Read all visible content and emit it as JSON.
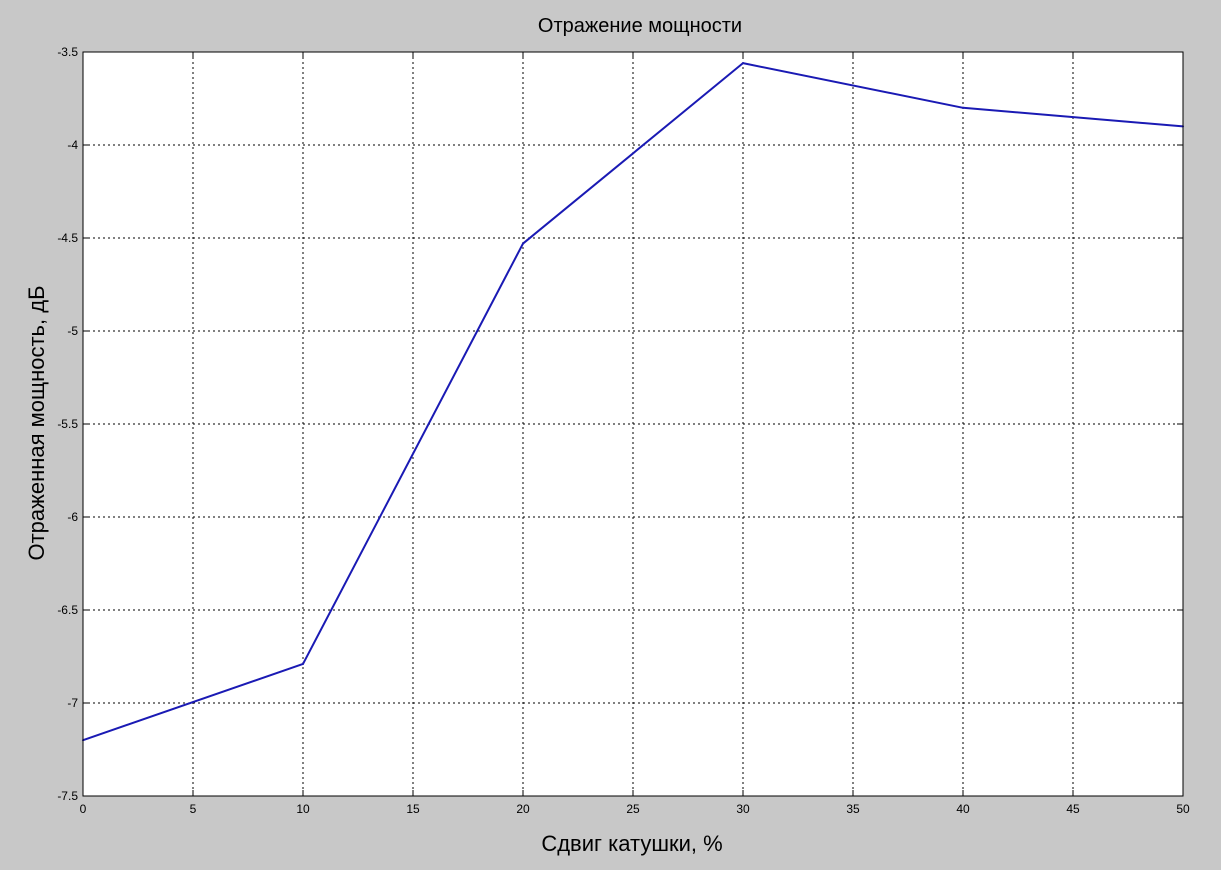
{
  "colors": {
    "figure_background": "#c8c8c8",
    "plot_background": "#ffffff",
    "line": "#1a1ab4",
    "grid": "#000000"
  },
  "chart_data": {
    "type": "line",
    "title": "Отражение мощности",
    "xlabel": "Сдвиг катушки, %",
    "ylabel": "Отраженная мощность, дБ",
    "xlim": [
      0,
      50
    ],
    "ylim": [
      -7.5,
      -3.5
    ],
    "x_ticks": [
      0,
      5,
      10,
      15,
      20,
      25,
      30,
      35,
      40,
      45,
      50
    ],
    "x_tick_labels": [
      "0",
      "5",
      "10",
      "15",
      "20",
      "25",
      "30",
      "35",
      "40",
      "45",
      "50"
    ],
    "y_ticks": [
      -3.5,
      -4,
      -4.5,
      -5,
      -5.5,
      -6,
      -6.5,
      -7,
      -7.5
    ],
    "y_tick_labels": [
      "-3.5",
      "-4",
      "-4.5",
      "-5",
      "-5.5",
      "-6",
      "-6.5",
      "-7",
      "-7.5"
    ],
    "grid": true,
    "grid_style": "dotted",
    "series": [
      {
        "x": [
          0,
          10,
          20,
          30,
          40,
          50
        ],
        "y": [
          -7.2,
          -6.79,
          -4.53,
          -3.56,
          -3.8,
          -3.9
        ]
      }
    ]
  }
}
